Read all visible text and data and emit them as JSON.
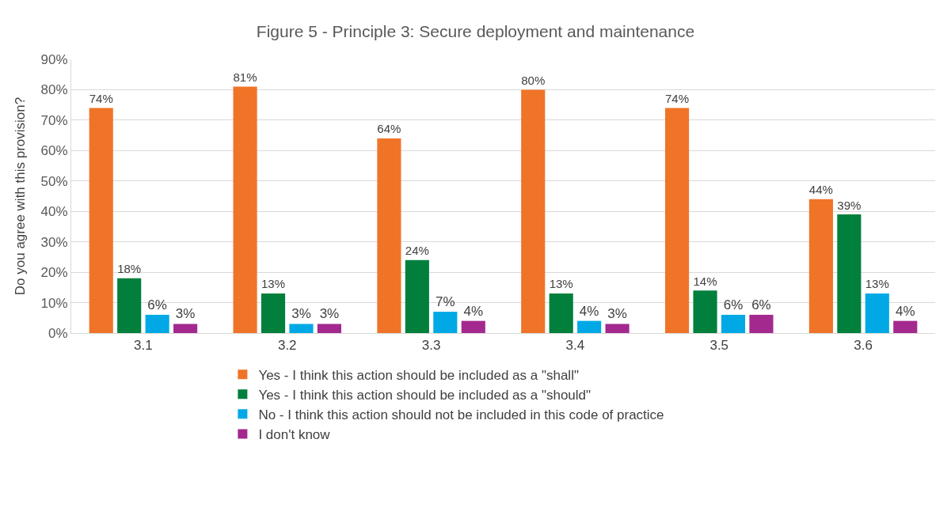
{
  "chart_data": {
    "type": "bar",
    "title": "Figure 5 - Principle 3: Secure deployment and maintenance",
    "ylabel": "Do you agree with this provision?",
    "categories": [
      "3.1",
      "3.2",
      "3.3",
      "3.4",
      "3.5",
      "3.6"
    ],
    "series": [
      {
        "name": "Yes - I think this action should be included as a \"shall\"",
        "color": "#f07427",
        "values": [
          74,
          81,
          64,
          80,
          74,
          44
        ],
        "value_labels": [
          "74%",
          "81%",
          "64%",
          "80%",
          "74%",
          "44%"
        ]
      },
      {
        "name": "Yes - I think this action should be included as a \"should\"",
        "color": "#007f3d",
        "values": [
          18,
          13,
          24,
          13,
          14,
          39
        ],
        "value_labels": [
          "18%",
          "13%",
          "24%",
          "13%",
          "14%",
          "39%"
        ]
      },
      {
        "name": "No - I think this action should not be included in this code of practice",
        "color": "#00a9e6",
        "values": [
          6,
          3,
          7,
          4,
          6,
          13
        ],
        "value_labels": [
          "6%",
          "3%",
          "7%",
          "4%",
          "6%",
          "13%"
        ]
      },
      {
        "name": "I don't know",
        "color": "#a3298f",
        "values": [
          3,
          3,
          4,
          3,
          6,
          4
        ],
        "value_labels": [
          "3%",
          "3%",
          "4%",
          "3%",
          "6%",
          "4%"
        ]
      }
    ],
    "ylim": [
      0,
      90
    ],
    "yticks": [
      {
        "value": 0,
        "label": "0%"
      },
      {
        "value": 10,
        "label": "10%"
      },
      {
        "value": 20,
        "label": "20%"
      },
      {
        "value": 30,
        "label": "30%"
      },
      {
        "value": 40,
        "label": "40%"
      },
      {
        "value": 50,
        "label": "50%"
      },
      {
        "value": 60,
        "label": "60%"
      },
      {
        "value": 70,
        "label": "70%"
      },
      {
        "value": 80,
        "label": "80%"
      },
      {
        "value": 90,
        "label": "90%"
      }
    ],
    "grid": "y",
    "legend": "bottom"
  }
}
